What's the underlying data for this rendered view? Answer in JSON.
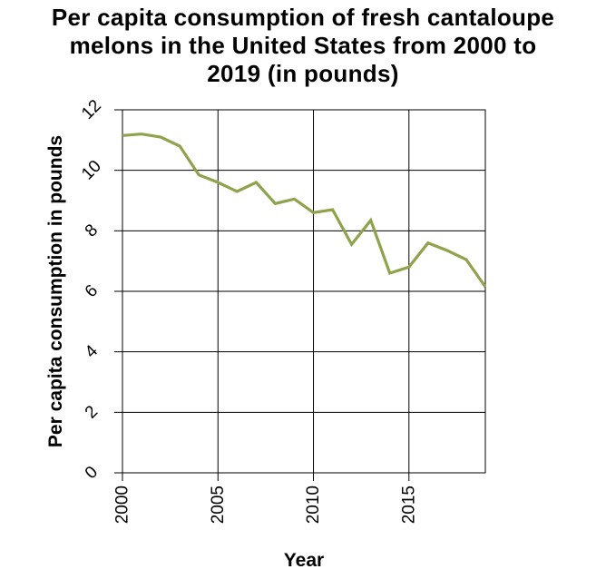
{
  "chart_data": {
    "type": "line",
    "title_lines": [
      "Per capita consumption of fresh cantaloupe",
      "melons in the United States from 2000 to",
      "2019 (in pounds)"
    ],
    "xlabel": "Year",
    "ylabel": "Per capita consumption in pounds",
    "xlim": [
      2000,
      2019
    ],
    "ylim": [
      0,
      12
    ],
    "x_ticks": [
      2000,
      2005,
      2010,
      2015
    ],
    "y_ticks": [
      0,
      2,
      4,
      6,
      8,
      10,
      12
    ],
    "grid": true,
    "line_color": "#8ea34c",
    "series": [
      {
        "x": [
          2000,
          2001,
          2002,
          2003,
          2004,
          2005,
          2006,
          2007,
          2008,
          2009,
          2010,
          2011,
          2012,
          2013,
          2014,
          2015,
          2016,
          2017,
          2018,
          2019
        ],
        "values": [
          11.15,
          11.2,
          11.1,
          10.8,
          9.85,
          9.6,
          9.3,
          9.6,
          8.9,
          9.05,
          8.6,
          8.7,
          7.55,
          8.35,
          6.6,
          6.8,
          7.6,
          7.35,
          7.05,
          6.15
        ]
      }
    ]
  }
}
